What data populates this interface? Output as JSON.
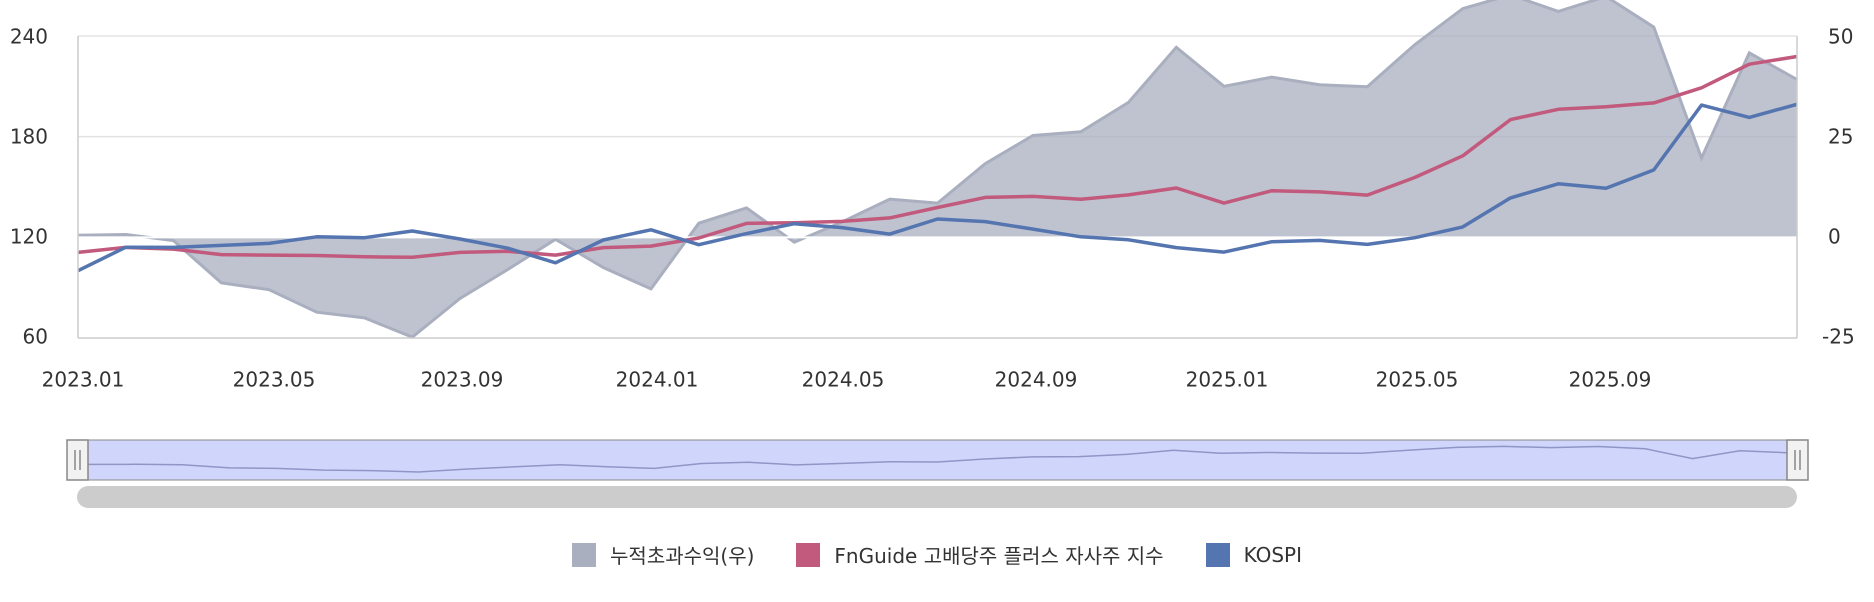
{
  "chart_data": {
    "type": "line",
    "title": "",
    "x": [
      "2023.01",
      "2023.02",
      "2023.03",
      "2023.04",
      "2023.05",
      "2023.06",
      "2023.07",
      "2023.08",
      "2023.09",
      "2023.10",
      "2023.11",
      "2023.12",
      "2024.01",
      "2024.02",
      "2024.03",
      "2024.04",
      "2024.05",
      "2024.06",
      "2024.07",
      "2024.08",
      "2024.09",
      "2024.10",
      "2024.11",
      "2024.12",
      "2025.01",
      "2025.02",
      "2025.03",
      "2025.04",
      "2025.05",
      "2025.06",
      "2025.07",
      "2025.08",
      "2025.09",
      "2025.10",
      "2025.11",
      "2025.12",
      "2026.01"
    ],
    "x_tick_labels": [
      "2023.01",
      "2023.05",
      "2023.09",
      "2024.01",
      "2024.05",
      "2024.09",
      "2025.01",
      "2025.05",
      "2025.09"
    ],
    "left_axis": {
      "ylim": [
        60,
        240
      ],
      "ticks": [
        "240",
        "180",
        "120",
        "60"
      ]
    },
    "right_axis": {
      "ylim": [
        -25,
        50
      ],
      "ticks": [
        "50",
        "25",
        "0",
        "-25"
      ]
    },
    "series": [
      {
        "name": "누적초과수익(우)",
        "axis": "right",
        "kind": "area",
        "color": "#a9afbf",
        "values": [
          0.5,
          0.7,
          -0.8,
          -11.3,
          -13,
          -18.6,
          -20,
          -24.8,
          -15.2,
          -8,
          -0.5,
          -7.5,
          -12.8,
          3.5,
          7.3,
          -1.2,
          3.8,
          9.5,
          8.5,
          18.3,
          25.3,
          26.2,
          33.5,
          47.2,
          37.5,
          39.8,
          37.9,
          37.4,
          47.9,
          56.8,
          60.2,
          56.1,
          59.8,
          52.2,
          19.7,
          45.8,
          39.2
        ]
      },
      {
        "name": "FnGuide 고배당주 플러스 자사주 지수",
        "axis": "left",
        "kind": "line",
        "color": "#c15a7c",
        "values": [
          111,
          114,
          113,
          109.7,
          109.4,
          109.2,
          108.4,
          108.1,
          111,
          111.7,
          109.4,
          113.9,
          114.8,
          119.6,
          128.3,
          128.7,
          129.5,
          131.6,
          137.8,
          143.8,
          144.4,
          142.7,
          145.3,
          149.4,
          140.4,
          147.8,
          147.1,
          145.2,
          155.7,
          168.6,
          190.2,
          196.3,
          197.8,
          200.1,
          209.1,
          223.2,
          227.8
        ]
      },
      {
        "name": "KOSPI",
        "axis": "left",
        "kind": "line",
        "color": "#5575b0",
        "values": [
          100.1,
          114.1,
          114,
          115.2,
          116.4,
          120.3,
          119.8,
          123.8,
          119,
          113.5,
          104.8,
          118.4,
          124.5,
          115.6,
          122.2,
          128.1,
          125.8,
          121.9,
          130.9,
          129.4,
          124.9,
          120.3,
          118.5,
          113.9,
          111.2,
          117.4,
          118.2,
          115.8,
          119.8,
          126.2,
          143.5,
          151.9,
          149.3,
          160.2,
          198.8,
          191.5,
          199.3
        ]
      }
    ],
    "legend_position": "bottom-center",
    "grid": true
  }
}
